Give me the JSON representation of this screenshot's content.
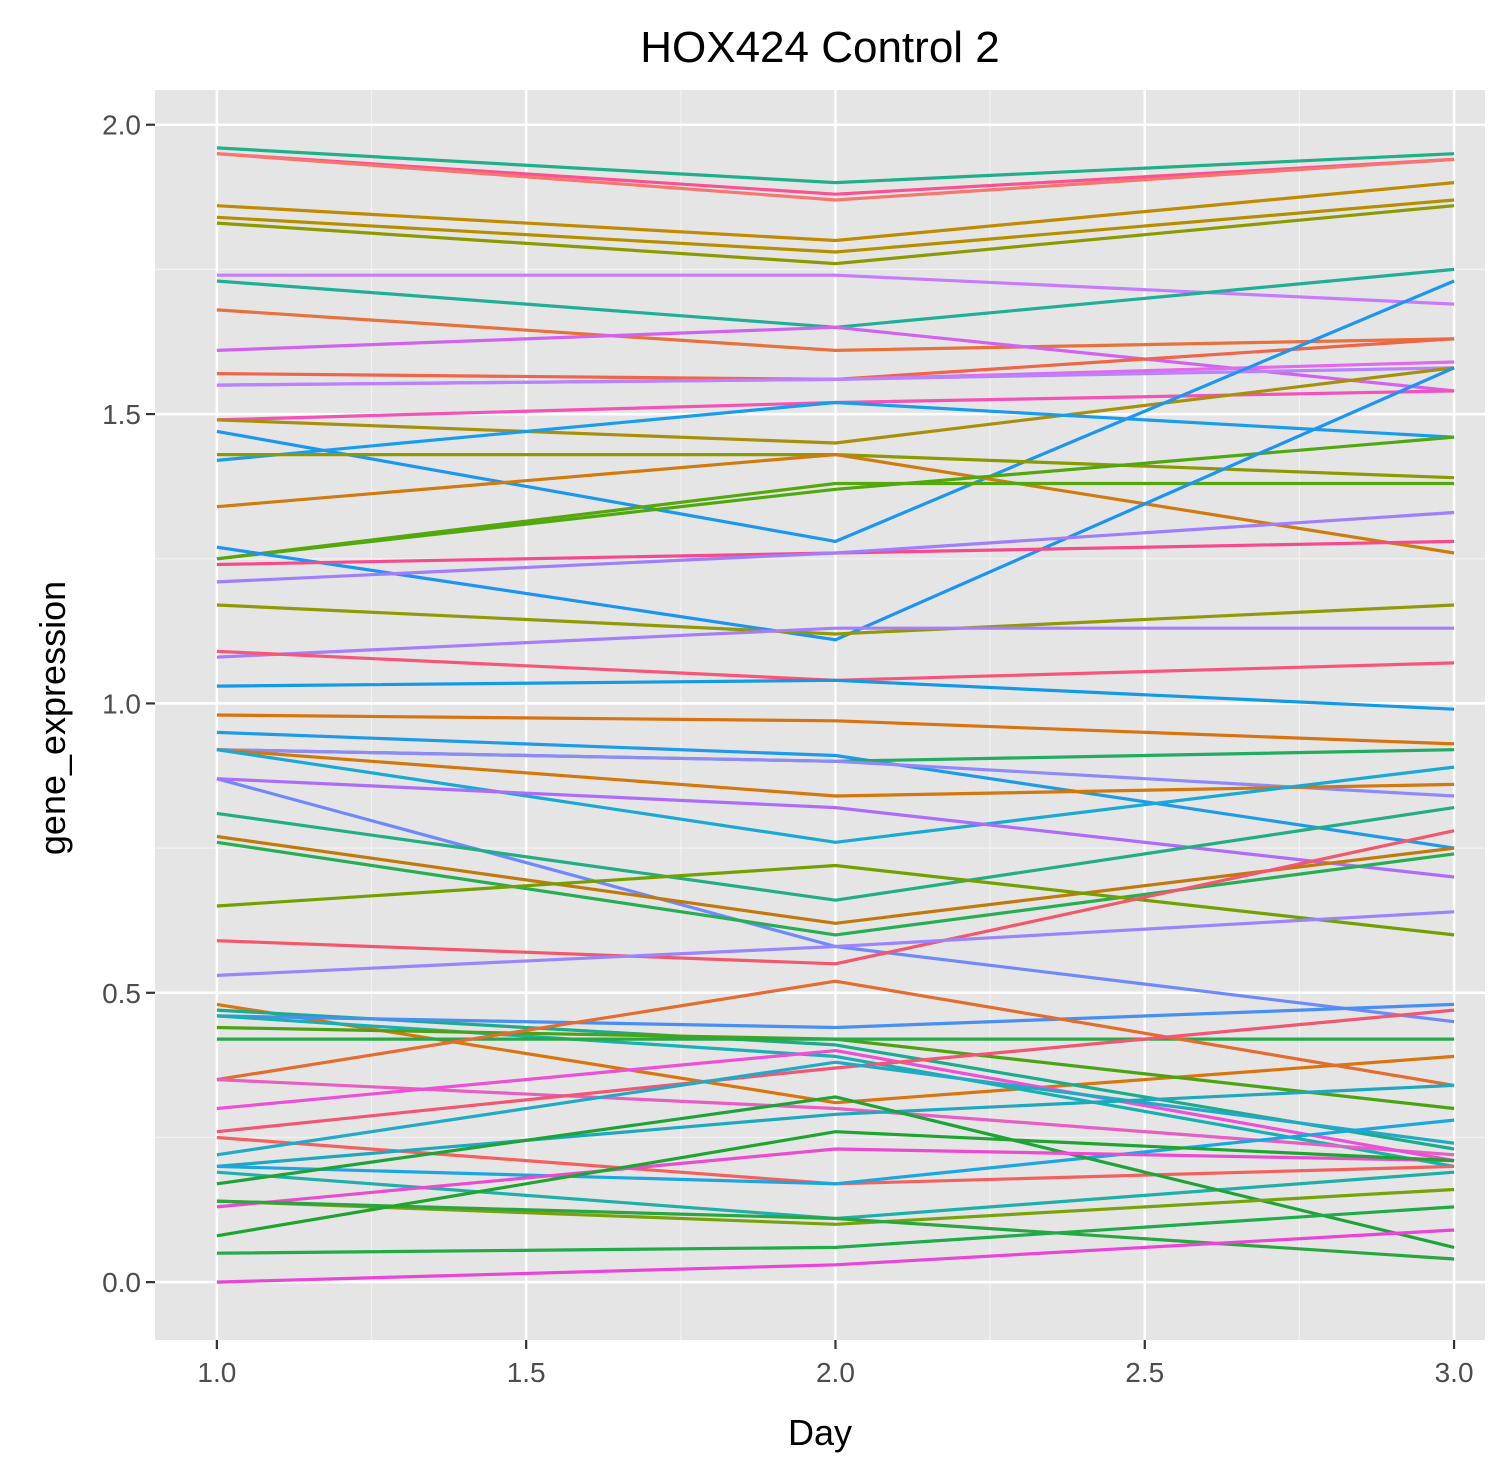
{
  "chart_data": {
    "type": "line",
    "title": "HOX424 Control 2",
    "xlabel": "Day",
    "ylabel": "gene_expression",
    "xlim": [
      0.9,
      3.05
    ],
    "ylim": [
      -0.1,
      2.06
    ],
    "x_ticks": [
      "1.0",
      "1.5",
      "2.0",
      "2.5",
      "3.0"
    ],
    "y_ticks": [
      "0.0",
      "0.5",
      "1.0",
      "1.5",
      "2.0"
    ],
    "grid": true,
    "legend": "none",
    "x": [
      1,
      2,
      3
    ],
    "series": [
      {
        "values": [
          1.96,
          1.9,
          1.95
        ],
        "color": "#1fb08a"
      },
      {
        "values": [
          1.95,
          1.88,
          1.94
        ],
        "color": "#fb5092"
      },
      {
        "values": [
          1.95,
          1.87,
          1.94
        ],
        "color": "#f8766d"
      },
      {
        "values": [
          1.86,
          1.8,
          1.9
        ],
        "color": "#c08b00"
      },
      {
        "values": [
          1.84,
          1.78,
          1.87
        ],
        "color": "#b58f00"
      },
      {
        "values": [
          1.83,
          1.76,
          1.86
        ],
        "color": "#8a9a00"
      },
      {
        "values": [
          1.74,
          1.74,
          1.69
        ],
        "color": "#c77cff"
      },
      {
        "values": [
          1.73,
          1.65,
          1.75
        ],
        "color": "#20ae96"
      },
      {
        "values": [
          1.68,
          1.61,
          1.63
        ],
        "color": "#e8703c"
      },
      {
        "values": [
          1.61,
          1.65,
          1.54
        ],
        "color": "#d163f0"
      },
      {
        "values": [
          1.57,
          1.56,
          1.63
        ],
        "color": "#ef6547"
      },
      {
        "values": [
          1.55,
          1.56,
          1.59
        ],
        "color": "#e468ee"
      },
      {
        "values": [
          1.55,
          1.56,
          1.58
        ],
        "color": "#b783ff"
      },
      {
        "values": [
          1.49,
          1.52,
          1.54
        ],
        "color": "#f552b8"
      },
      {
        "values": [
          1.49,
          1.45,
          1.58
        ],
        "color": "#a6900c"
      },
      {
        "values": [
          1.47,
          1.28,
          1.73
        ],
        "color": "#1c96f0"
      },
      {
        "values": [
          1.42,
          1.52,
          1.46
        ],
        "color": "#1a9cec"
      },
      {
        "values": [
          1.43,
          1.43,
          1.39
        ],
        "color": "#8a9a00"
      },
      {
        "values": [
          1.34,
          1.43,
          1.26
        ],
        "color": "#cf7b0e"
      },
      {
        "values": [
          1.25,
          1.37,
          1.46
        ],
        "color": "#4fa80d"
      },
      {
        "values": [
          1.25,
          1.38,
          1.38
        ],
        "color": "#56a70c"
      },
      {
        "values": [
          1.27,
          1.11,
          1.58
        ],
        "color": "#1b94f5"
      },
      {
        "values": [
          1.24,
          1.26,
          1.28
        ],
        "color": "#f64a8c"
      },
      {
        "values": [
          1.21,
          1.26,
          1.33
        ],
        "color": "#9f7ffc"
      },
      {
        "values": [
          1.17,
          1.12,
          1.17
        ],
        "color": "#8f9a06"
      },
      {
        "values": [
          1.08,
          1.13,
          1.13
        ],
        "color": "#a67dfa"
      },
      {
        "values": [
          1.09,
          1.04,
          1.07
        ],
        "color": "#f7567a"
      },
      {
        "values": [
          1.03,
          1.04,
          0.99
        ],
        "color": "#139ae6"
      },
      {
        "values": [
          0.98,
          0.97,
          0.93
        ],
        "color": "#d9730d"
      },
      {
        "values": [
          0.95,
          0.91,
          0.75
        ],
        "color": "#1d9be8"
      },
      {
        "values": [
          0.92,
          0.9,
          0.92
        ],
        "color": "#21ac62"
      },
      {
        "values": [
          0.92,
          0.9,
          0.84
        ],
        "color": "#8f89fc"
      },
      {
        "values": [
          0.92,
          0.84,
          0.86
        ],
        "color": "#d2780c"
      },
      {
        "values": [
          0.92,
          0.76,
          0.89
        ],
        "color": "#1aa8d4"
      },
      {
        "values": [
          0.87,
          0.58,
          0.45
        ],
        "color": "#6f88fb"
      },
      {
        "values": [
          0.87,
          0.82,
          0.7
        ],
        "color": "#ad6cfc"
      },
      {
        "values": [
          0.81,
          0.66,
          0.82
        ],
        "color": "#22ad84"
      },
      {
        "values": [
          0.77,
          0.62,
          0.75
        ],
        "color": "#c0790c"
      },
      {
        "values": [
          0.76,
          0.6,
          0.74
        ],
        "color": "#27ad53"
      },
      {
        "values": [
          0.65,
          0.72,
          0.6
        ],
        "color": "#749f00"
      },
      {
        "values": [
          0.59,
          0.55,
          0.78
        ],
        "color": "#f4566c"
      },
      {
        "values": [
          0.53,
          0.58,
          0.64
        ],
        "color": "#9b84fd"
      },
      {
        "values": [
          0.48,
          0.31,
          0.39
        ],
        "color": "#d9750e"
      },
      {
        "values": [
          0.47,
          0.41,
          0.23
        ],
        "color": "#1cab8c"
      },
      {
        "values": [
          0.46,
          0.44,
          0.48
        ],
        "color": "#488ff3"
      },
      {
        "values": [
          0.46,
          0.39,
          0.2
        ],
        "color": "#18b0b0"
      },
      {
        "values": [
          0.44,
          0.42,
          0.3
        ],
        "color": "#4ba313"
      },
      {
        "values": [
          0.42,
          0.42,
          0.42
        ],
        "color": "#27a945"
      },
      {
        "values": [
          0.35,
          0.52,
          0.34
        ],
        "color": "#e36c2f"
      },
      {
        "values": [
          0.35,
          0.3,
          0.22
        ],
        "color": "#e85fc3"
      },
      {
        "values": [
          0.3,
          0.4,
          0.21
        ],
        "color": "#ed4fd6"
      },
      {
        "values": [
          0.26,
          0.37,
          0.47
        ],
        "color": "#f25672"
      },
      {
        "values": [
          0.25,
          0.17,
          0.2
        ],
        "color": "#f4605e"
      },
      {
        "values": [
          0.22,
          0.38,
          0.24
        ],
        "color": "#22a9c4"
      },
      {
        "values": [
          0.2,
          0.29,
          0.34
        ],
        "color": "#1fa7bd"
      },
      {
        "values": [
          0.2,
          0.17,
          0.28
        ],
        "color": "#1ca6e0"
      },
      {
        "values": [
          0.19,
          0.11,
          0.19
        ],
        "color": "#1fafaa"
      },
      {
        "values": [
          0.17,
          0.32,
          0.06
        ],
        "color": "#1fa338"
      },
      {
        "values": [
          0.14,
          0.1,
          0.16
        ],
        "color": "#77a20a"
      },
      {
        "values": [
          0.13,
          0.23,
          0.21
        ],
        "color": "#ea4bd1"
      },
      {
        "values": [
          0.14,
          0.11,
          0.04
        ],
        "color": "#2aa640"
      },
      {
        "values": [
          0.08,
          0.26,
          0.21
        ],
        "color": "#1ea52f"
      },
      {
        "values": [
          0.05,
          0.06,
          0.13
        ],
        "color": "#21aa48"
      },
      {
        "values": [
          0.0,
          0.03,
          0.09
        ],
        "color": "#ea45d8"
      }
    ]
  }
}
